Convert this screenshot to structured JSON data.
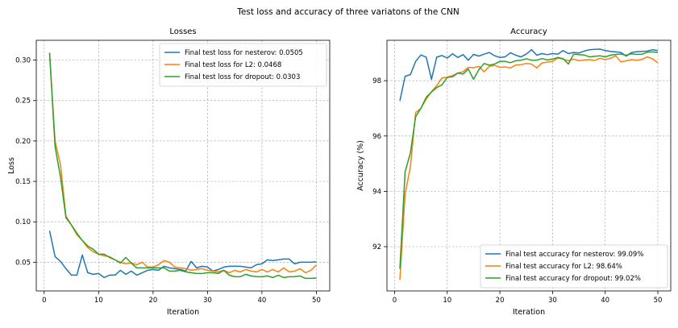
{
  "suptitle": "Test loss and accuracy of three variatons of the CNN",
  "colors": {
    "nesterov": "#1f77b4",
    "l2": "#ff7f0e",
    "dropout": "#2ca02c"
  },
  "chart_data": [
    {
      "type": "line",
      "title": "Losses",
      "xlabel": "Iteration",
      "ylabel": "Loss",
      "xlim": [
        -1.45,
        52.45
      ],
      "ylim": [
        0.0145,
        0.3245
      ],
      "xticks": [
        0,
        10,
        20,
        30,
        40,
        50
      ],
      "yticks": [
        0.05,
        0.1,
        0.15,
        0.2,
        0.25,
        0.3
      ],
      "ytick_labels": [
        "0.05",
        "0.10",
        "0.15",
        "0.20",
        "0.25",
        "0.30"
      ],
      "grid": true,
      "legend_position": "upper right",
      "x": [
        1,
        2,
        3,
        4,
        5,
        6,
        7,
        8,
        9,
        10,
        11,
        12,
        13,
        14,
        15,
        16,
        17,
        18,
        19,
        20,
        21,
        22,
        23,
        24,
        25,
        26,
        27,
        28,
        29,
        30,
        31,
        32,
        33,
        34,
        35,
        36,
        37,
        38,
        39,
        40,
        41,
        42,
        43,
        44,
        45,
        46,
        47,
        48,
        49,
        50
      ],
      "series": [
        {
          "name": "Final test loss for nesterov: 0.0505",
          "color_key": "nesterov",
          "values": [
            0.089,
            0.057,
            0.051,
            0.042,
            0.034,
            0.034,
            0.059,
            0.037,
            0.035,
            0.036,
            0.031,
            0.034,
            0.034,
            0.04,
            0.035,
            0.039,
            0.034,
            0.037,
            0.04,
            0.041,
            0.04,
            0.045,
            0.043,
            0.042,
            0.041,
            0.039,
            0.051,
            0.043,
            0.045,
            0.044,
            0.039,
            0.041,
            0.044,
            0.045,
            0.045,
            0.045,
            0.044,
            0.043,
            0.047,
            0.048,
            0.053,
            0.052,
            0.053,
            0.054,
            0.054,
            0.048,
            0.05,
            0.05,
            0.05,
            0.0505
          ]
        },
        {
          "name": "Final test loss for L2: 0.0468",
          "color_key": "l2",
          "values": [
            0.309,
            0.2,
            0.17,
            0.107,
            0.096,
            0.084,
            0.077,
            0.068,
            0.063,
            0.06,
            0.058,
            0.057,
            0.053,
            0.05,
            0.048,
            0.049,
            0.047,
            0.05,
            0.044,
            0.044,
            0.047,
            0.052,
            0.05,
            0.044,
            0.043,
            0.042,
            0.04,
            0.041,
            0.042,
            0.04,
            0.039,
            0.038,
            0.04,
            0.037,
            0.04,
            0.038,
            0.041,
            0.039,
            0.038,
            0.041,
            0.038,
            0.041,
            0.038,
            0.043,
            0.038,
            0.039,
            0.042,
            0.037,
            0.04,
            0.0468
          ]
        },
        {
          "name": "Final test loss for dropout: 0.0303",
          "color_key": "dropout",
          "values": [
            0.309,
            0.193,
            0.155,
            0.105,
            0.096,
            0.086,
            0.077,
            0.07,
            0.066,
            0.06,
            0.06,
            0.056,
            0.053,
            0.049,
            0.056,
            0.049,
            0.043,
            0.043,
            0.043,
            0.043,
            0.043,
            0.043,
            0.039,
            0.039,
            0.04,
            0.038,
            0.037,
            0.036,
            0.036,
            0.037,
            0.037,
            0.036,
            0.04,
            0.034,
            0.032,
            0.032,
            0.035,
            0.033,
            0.032,
            0.032,
            0.033,
            0.031,
            0.034,
            0.031,
            0.032,
            0.032,
            0.033,
            0.03,
            0.03,
            0.0303
          ]
        }
      ]
    },
    {
      "type": "line",
      "title": "Accuracy",
      "xlabel": "Iteration",
      "ylabel": "Accuracy (%)",
      "xlim": [
        -1.45,
        52.45
      ],
      "ylim": [
        90.4,
        99.46
      ],
      "xticks": [
        0,
        10,
        20,
        30,
        40,
        50
      ],
      "yticks": [
        92,
        94,
        96,
        98
      ],
      "ytick_labels": [
        "92",
        "94",
        "96",
        "98"
      ],
      "grid": true,
      "legend_position": "lower right",
      "x": [
        1,
        2,
        3,
        4,
        5,
        6,
        7,
        8,
        9,
        10,
        11,
        12,
        13,
        14,
        15,
        16,
        17,
        18,
        19,
        20,
        21,
        22,
        23,
        24,
        25,
        26,
        27,
        28,
        29,
        30,
        31,
        32,
        33,
        34,
        35,
        36,
        37,
        38,
        39,
        40,
        41,
        42,
        43,
        44,
        45,
        46,
        47,
        48,
        49,
        50
      ],
      "series": [
        {
          "name": "Final test accuracy for nesterov: 99.09%",
          "color_key": "nesterov",
          "values": [
            97.27,
            98.16,
            98.22,
            98.7,
            98.93,
            98.85,
            98.05,
            98.85,
            98.91,
            98.82,
            98.97,
            98.84,
            98.94,
            98.74,
            98.95,
            98.89,
            98.96,
            99.02,
            98.9,
            98.84,
            98.86,
            99.01,
            98.92,
            98.86,
            98.96,
            99.12,
            98.92,
            98.98,
            98.94,
            98.98,
            98.96,
            99.09,
            98.98,
            99.02,
            99.0,
            99.07,
            99.12,
            99.13,
            99.14,
            99.09,
            99.06,
            99.04,
            99.02,
            98.89,
            99.02,
            99.05,
            99.06,
            99.07,
            99.12,
            99.09
          ]
        },
        {
          "name": "Final test accuracy for L2: 98.64%",
          "color_key": "l2",
          "values": [
            90.8,
            93.9,
            94.9,
            96.85,
            97.0,
            97.33,
            97.6,
            97.82,
            98.1,
            98.13,
            98.18,
            98.28,
            98.32,
            98.48,
            98.47,
            98.52,
            98.32,
            98.52,
            98.55,
            98.48,
            98.5,
            98.46,
            98.57,
            98.58,
            98.62,
            98.6,
            98.46,
            98.64,
            98.67,
            98.7,
            98.82,
            98.78,
            98.72,
            98.78,
            98.72,
            98.75,
            98.76,
            98.73,
            98.81,
            98.76,
            98.81,
            98.9,
            98.68,
            98.72,
            98.76,
            98.74,
            98.77,
            98.86,
            98.79,
            98.64
          ]
        },
        {
          "name": "Final test accuracy for dropout: 99.02%",
          "color_key": "dropout",
          "values": [
            91.2,
            94.7,
            95.4,
            96.7,
            97.0,
            97.4,
            97.59,
            97.75,
            97.85,
            98.12,
            98.14,
            98.27,
            98.24,
            98.42,
            98.05,
            98.4,
            98.62,
            98.56,
            98.6,
            98.7,
            98.7,
            98.65,
            98.72,
            98.74,
            98.79,
            98.74,
            98.74,
            98.8,
            98.75,
            98.78,
            98.84,
            98.8,
            98.6,
            98.96,
            98.94,
            98.93,
            98.86,
            98.88,
            98.9,
            98.86,
            98.92,
            98.95,
            98.96,
            98.92,
            98.97,
            98.95,
            98.96,
            99.03,
            99.04,
            99.02
          ]
        }
      ]
    }
  ]
}
